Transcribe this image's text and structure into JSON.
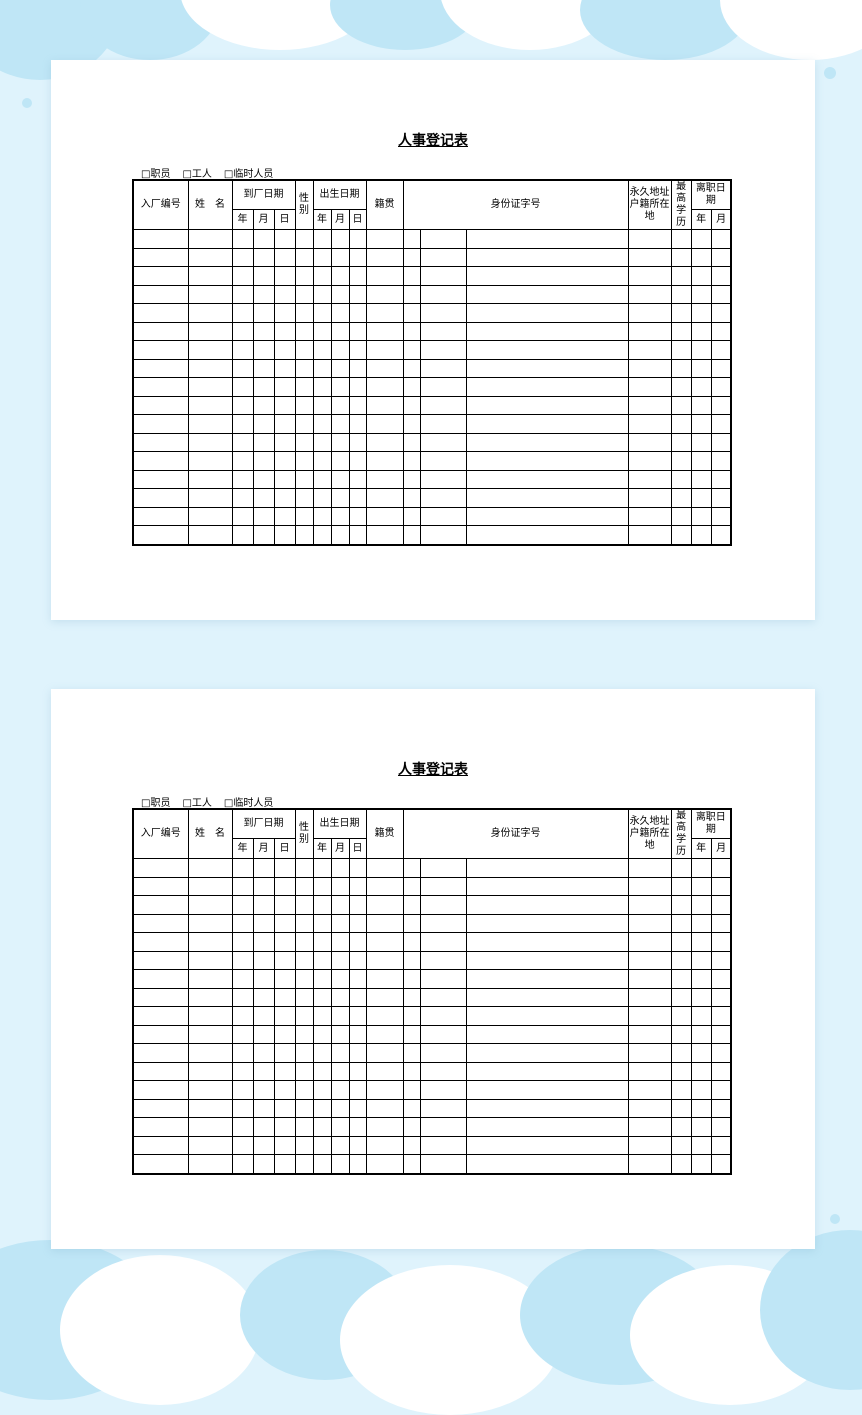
{
  "pages": [
    {
      "title": "人事登记表",
      "checkboxes": [
        "□职员",
        "□工人",
        "□临时人员"
      ],
      "headers": {
        "entry_no": "入厂编号",
        "name": "姓　名",
        "arrival_date": "到厂日期",
        "gender": "性别",
        "birth_date": "出生日期",
        "native_place": "籍贯",
        "id_no": "身份证字号",
        "address": "永久地址户籍所在地",
        "education": "最高学历",
        "leave_date": "离职日期",
        "year": "年",
        "month": "月",
        "day": "日"
      },
      "row_count": 17
    },
    {
      "title": "人事登记表",
      "checkboxes": [
        "□职员",
        "□工人",
        "□临时人员"
      ],
      "headers": {
        "entry_no": "入厂编号",
        "name": "姓　名",
        "arrival_date": "到厂日期",
        "gender": "性别",
        "birth_date": "出生日期",
        "native_place": "籍贯",
        "id_no": "身份证字号",
        "address": "永久地址户籍所在地",
        "education": "最高学历",
        "leave_date": "离职日期",
        "year": "年",
        "month": "月",
        "day": "日"
      },
      "row_count": 17
    }
  ],
  "colors": {
    "background": "#dff3fc",
    "cloud": "#bfe6f6",
    "paper": "#ffffff"
  }
}
